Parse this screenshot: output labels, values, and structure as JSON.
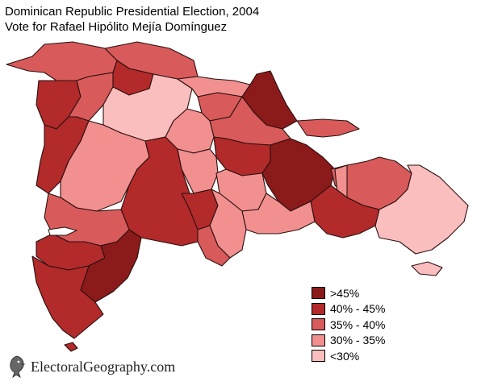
{
  "title": {
    "line1": "Dominican Republic Presidential Election, 2004",
    "line2": "Vote for Rafael Hipólito Mejía Domínguez"
  },
  "colors": {
    "over45": "#8b1a1a",
    "40to45": "#b22a2a",
    "35to40": "#d95a5a",
    "30to35": "#f29090",
    "under30": "#fbbebe",
    "outline": "#2a1010"
  },
  "legend": [
    {
      "label": ">45%",
      "class": "over45"
    },
    {
      "label": "40% - 45%",
      "class": "40to45"
    },
    {
      "label": "35% - 40%",
      "class": "35to40"
    },
    {
      "label": "30% - 35%",
      "class": "30to35"
    },
    {
      "label": "<30%",
      "class": "under30"
    }
  ],
  "footer": {
    "text": "ElectoralGeography.com",
    "logo_icon": "eagle-logo-icon"
  }
}
